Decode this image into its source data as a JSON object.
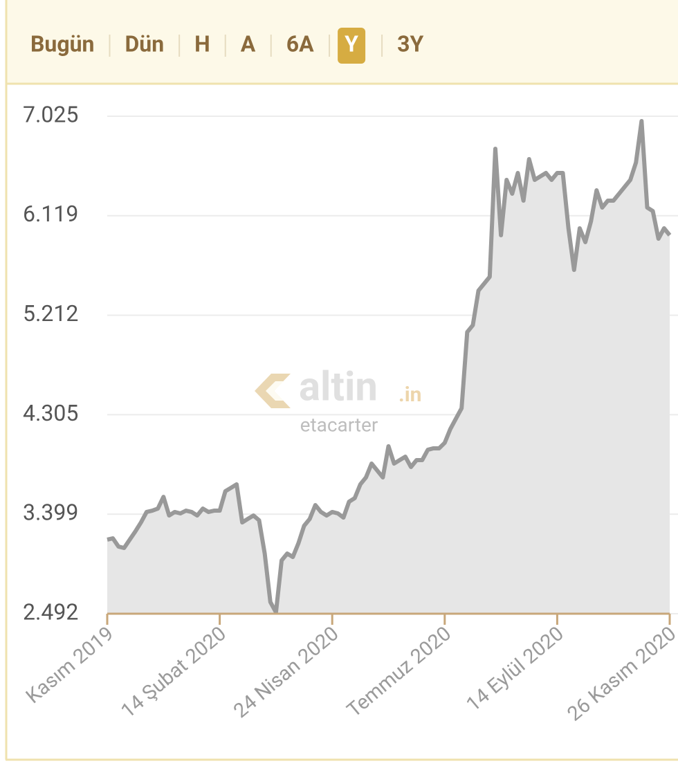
{
  "tabs": [
    "Bugün",
    "Dün",
    "H",
    "A",
    "6A",
    "Y",
    "3Y"
  ],
  "selected_tab": 5,
  "watermark": {
    "brand": "altin",
    "domain": ".in",
    "user": "etacarter"
  },
  "chart_data": {
    "type": "line",
    "color": "#999999",
    "fill": "#e6e6e6",
    "grid": true,
    "values": [
      3.167,
      3.179,
      3.104,
      3.091,
      3.167,
      3.242,
      3.324,
      3.419,
      3.431,
      3.45,
      3.557,
      3.387,
      3.419,
      3.406,
      3.431,
      3.419,
      3.387,
      3.45,
      3.419,
      3.431,
      3.431,
      3.608,
      3.639,
      3.671,
      3.324,
      3.356,
      3.387,
      3.343,
      3.04,
      2.599,
      2.505,
      2.977,
      3.04,
      3.009,
      3.135,
      3.293,
      3.356,
      3.482,
      3.419,
      3.387,
      3.419,
      3.406,
      3.368,
      3.513,
      3.545,
      3.671,
      3.734,
      3.86,
      3.797,
      3.734,
      4.018,
      3.86,
      3.892,
      3.923,
      3.829,
      3.892,
      3.892,
      3.986,
      3.999,
      3.999,
      4.049,
      4.175,
      4.27,
      4.364,
      5.058,
      5.121,
      5.436,
      5.499,
      5.562,
      6.729,
      5.941,
      6.445,
      6.319,
      6.508,
      6.256,
      6.634,
      6.445,
      6.477,
      6.508,
      6.445,
      6.508,
      6.508,
      6.004,
      5.625,
      6.004,
      5.878,
      6.067,
      6.35,
      6.193,
      6.256,
      6.256,
      6.319,
      6.382,
      6.445,
      6.603,
      6.981,
      6.193,
      6.161,
      5.909,
      6.004,
      5.941
    ],
    "xlim": [
      0,
      100
    ],
    "xticks": [
      {
        "value": 0,
        "label": "Kasım 2019"
      },
      {
        "value": 20,
        "label": "14 Şubat 2020"
      },
      {
        "value": 40,
        "label": "24 Nisan 2020"
      },
      {
        "value": 60,
        "label": "Temmuz 2020"
      },
      {
        "value": 80,
        "label": "14 Eylül 2020"
      },
      {
        "value": 100,
        "label": "26 Kasım 2020"
      }
    ],
    "ylim": [
      2.492,
      7.025
    ],
    "yticks": [
      7.025,
      6.119,
      5.212,
      4.305,
      3.399,
      2.492
    ]
  }
}
